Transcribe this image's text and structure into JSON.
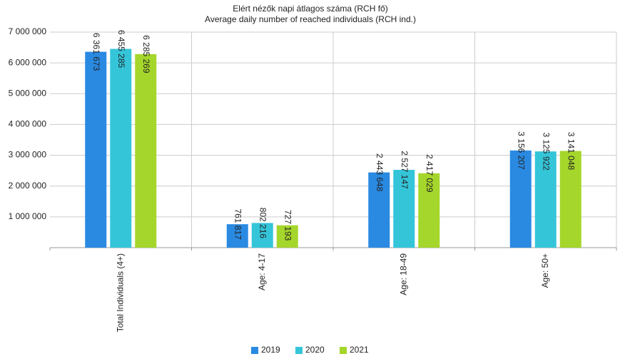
{
  "chart_data": {
    "type": "bar",
    "title": "Elért nézők napi átlagos száma (RCH fő)",
    "subtitle": "Average daily number of reached individuals (RCH ind.)",
    "categories": [
      "Total Individuals (4+)",
      "Age: 4-17",
      "Age: 18-49",
      "Age: 50+"
    ],
    "series": [
      {
        "name": "2019",
        "color": "#2a8ae2",
        "values": [
          6361673,
          761817,
          2443648,
          3156207
        ],
        "value_labels": [
          "6 361 673",
          "761 817",
          "2 443 648",
          "3 156 207"
        ]
      },
      {
        "name": "2020",
        "color": "#35c5d9",
        "values": [
          6455285,
          802216,
          2527147,
          3125922
        ],
        "value_labels": [
          "6 455 285",
          "802 216",
          "2 527 147",
          "3 125 922"
        ]
      },
      {
        "name": "2021",
        "color": "#a5d62b",
        "values": [
          6285269,
          727193,
          2417029,
          3141048
        ],
        "value_labels": [
          "6 285 269",
          "727 193",
          "2 417 029",
          "3 141 048"
        ]
      }
    ],
    "ylim": [
      0,
      7000000
    ],
    "yticks": [
      {
        "value": 1000000,
        "label": "1 000 000"
      },
      {
        "value": 2000000,
        "label": "2 000 000"
      },
      {
        "value": 3000000,
        "label": "3 000 000"
      },
      {
        "value": 4000000,
        "label": "4 000 000"
      },
      {
        "value": 5000000,
        "label": "5 000 000"
      },
      {
        "value": 6000000,
        "label": "6 000 000"
      },
      {
        "value": 7000000,
        "label": "7 000 000"
      }
    ],
    "grid": true,
    "legend": "bottom"
  }
}
